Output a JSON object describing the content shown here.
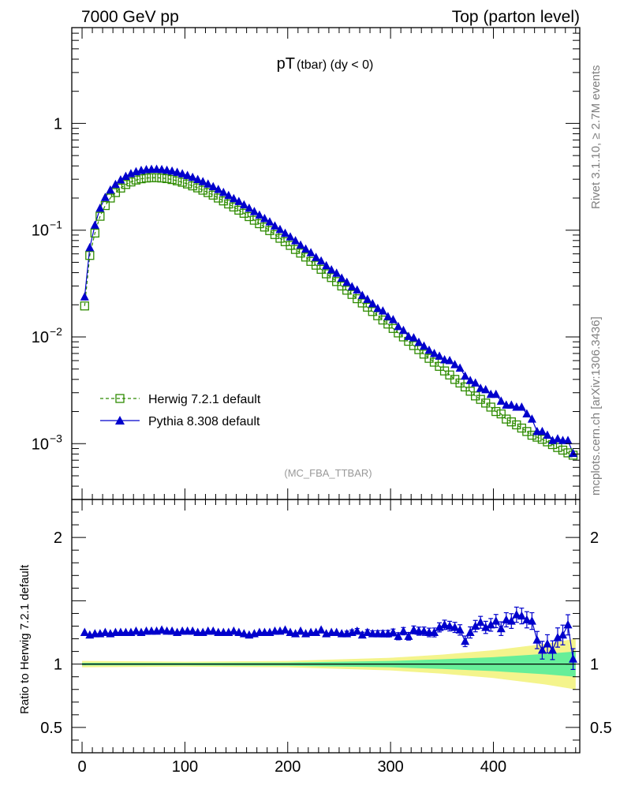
{
  "header": {
    "left": "7000 GeV pp",
    "right": "Top (parton level)"
  },
  "side_labels": {
    "rivet": "Rivet 3.1.10, ≥ 2.7M events",
    "mcplots": "mcplots.cern.ch [arXiv:1306.3436]"
  },
  "chart_data": [
    {
      "type": "line",
      "panel": "main",
      "title_main": "pT",
      "title_sub": "(tbar) (dy < 0)",
      "watermark": "(MC_FBA_TTBAR)",
      "yscale": "log",
      "xlim": [
        -10,
        484
      ],
      "ylim": [
        0.0003,
        7.9
      ],
      "xticks": [
        0,
        100,
        200,
        300,
        400
      ],
      "yticks": [
        {
          "value": 1,
          "label": "1"
        },
        {
          "value": 0.1,
          "label": "10",
          "exp": "−1"
        },
        {
          "value": 0.01,
          "label": "10",
          "exp": "−2"
        },
        {
          "value": 0.001,
          "label": "10",
          "exp": "−3"
        }
      ],
      "legend": [
        {
          "name": "Herwig 7.2.1 default",
          "color": "#2e8b00",
          "marker": "open-square",
          "dash": true
        },
        {
          "name": "Pythia 8.308 default",
          "color": "#0000cc",
          "marker": "filled-triangle",
          "dash": false
        }
      ],
      "legend_position": "lower-left",
      "x": [
        2.5,
        7.5,
        12.5,
        17.5,
        22.5,
        27.5,
        32.5,
        37.5,
        42.5,
        47.5,
        52.5,
        57.5,
        62.5,
        67.5,
        72.5,
        77.5,
        82.5,
        87.5,
        92.5,
        97.5,
        102.5,
        107.5,
        112.5,
        117.5,
        122.5,
        127.5,
        132.5,
        137.5,
        142.5,
        147.5,
        152.5,
        157.5,
        162.5,
        167.5,
        172.5,
        177.5,
        182.5,
        187.5,
        192.5,
        197.5,
        202.5,
        207.5,
        212.5,
        217.5,
        222.5,
        227.5,
        232.5,
        237.5,
        242.5,
        247.5,
        252.5,
        257.5,
        262.5,
        267.5,
        272.5,
        277.5,
        282.5,
        287.5,
        292.5,
        297.5,
        302.5,
        307.5,
        312.5,
        317.5,
        322.5,
        327.5,
        332.5,
        337.5,
        342.5,
        347.5,
        352.5,
        357.5,
        362.5,
        367.5,
        372.5,
        377.5,
        382.5,
        387.5,
        392.5,
        397.5,
        402.5,
        407.5,
        412.5,
        417.5,
        422.5,
        427.5,
        432.5,
        437.5,
        442.5,
        447.5,
        452.5,
        457.5,
        462.5,
        467.5,
        472.5,
        477.5
      ],
      "series": [
        {
          "name": "Herwig 7.2.1 default",
          "values": [
            0.0195,
            0.058,
            0.094,
            0.135,
            0.17,
            0.2,
            0.225,
            0.248,
            0.268,
            0.283,
            0.295,
            0.303,
            0.308,
            0.31,
            0.31,
            0.308,
            0.304,
            0.298,
            0.29,
            0.281,
            0.271,
            0.26,
            0.249,
            0.237,
            0.225,
            0.213,
            0.2,
            0.188,
            0.176,
            0.165,
            0.154,
            0.144,
            0.134,
            0.124,
            0.115,
            0.107,
            0.099,
            0.091,
            0.084,
            0.078,
            0.072,
            0.066,
            0.061,
            0.056,
            0.051,
            0.047,
            0.043,
            0.039,
            0.036,
            0.033,
            0.03,
            0.0274,
            0.025,
            0.0228,
            0.0208,
            0.019,
            0.0173,
            0.0158,
            0.0144,
            0.0132,
            0.012,
            0.0109,
            0.01,
            0.0091,
            0.0083,
            0.0076,
            0.0069,
            0.0063,
            0.0058,
            0.0053,
            0.0048,
            0.0044,
            0.004,
            0.0037,
            0.0034,
            0.0031,
            0.0028,
            0.0026,
            0.0024,
            0.0022,
            0.002,
            0.0019,
            0.0017,
            0.0016,
            0.0015,
            0.0014,
            0.0013,
            0.0012,
            0.00115,
            0.0011,
            0.00104,
            0.00098,
            0.00092,
            0.00087,
            0.00082,
            0.00078
          ]
        },
        {
          "name": "Pythia 8.308 default",
          "values": [
            0.0237,
            0.0685,
            0.1115,
            0.1605,
            0.2025,
            0.2375,
            0.268,
            0.2955,
            0.3195,
            0.338,
            0.353,
            0.3625,
            0.369,
            0.3715,
            0.372,
            0.3695,
            0.3645,
            0.3575,
            0.3485,
            0.3375,
            0.3255,
            0.3125,
            0.2985,
            0.2845,
            0.2705,
            0.2555,
            0.2405,
            0.2255,
            0.2115,
            0.1975,
            0.1855,
            0.1725,
            0.1605,
            0.1495,
            0.1385,
            0.1285,
            0.1195,
            0.1095,
            0.1015,
            0.0935,
            0.0865,
            0.0795,
            0.0725,
            0.0665,
            0.0615,
            0.0555,
            0.0515,
            0.0465,
            0.0425,
            0.0395,
            0.0355,
            0.0325,
            0.0295,
            0.0275,
            0.0245,
            0.0225,
            0.0205,
            0.0185,
            0.0175,
            0.0155,
            0.0145,
            0.0125,
            0.0115,
            0.0101,
            0.0098,
            0.0089,
            0.0082,
            0.0075,
            0.007,
            0.0066,
            0.0061,
            0.006,
            0.0055,
            0.0051,
            0.0043,
            0.0039,
            0.0037,
            0.0033,
            0.0032,
            0.0029,
            0.0029,
            0.0025,
            0.0023,
            0.0023,
            0.0022,
            0.0022,
            0.0019,
            0.0017,
            0.0013,
            0.0013,
            0.0012,
            0.00107,
            0.00111,
            0.00107,
            0.00107,
            0.00081
          ]
        }
      ]
    },
    {
      "type": "line",
      "panel": "ratio",
      "ylabel": "Ratio to Herwig 7.2.1 default",
      "xlim": [
        -10,
        484
      ],
      "ylim": [
        0.3,
        2.3
      ],
      "xticks": [
        0,
        100,
        200,
        300,
        400
      ],
      "yticks": [
        {
          "value": 0.5,
          "label": "0.5"
        },
        {
          "value": 1,
          "label": "1"
        },
        {
          "value": 2,
          "label": "2"
        }
      ],
      "reference": 1.0,
      "bands": {
        "x": [
          0,
          100,
          200,
          300,
          350,
          400,
          450,
          480
        ],
        "green_half_width": [
          0.01,
          0.01,
          0.013,
          0.025,
          0.038,
          0.055,
          0.08,
          0.1
        ],
        "yellow_half_width": [
          0.025,
          0.02,
          0.025,
          0.05,
          0.075,
          0.11,
          0.16,
          0.2
        ]
      },
      "series": [
        {
          "name": "Pythia 8.308 default ratio",
          "values": [
            1.25,
            1.23,
            1.24,
            1.24,
            1.25,
            1.24,
            1.25,
            1.25,
            1.25,
            1.25,
            1.26,
            1.25,
            1.26,
            1.26,
            1.26,
            1.27,
            1.26,
            1.26,
            1.25,
            1.26,
            1.26,
            1.26,
            1.25,
            1.25,
            1.26,
            1.26,
            1.25,
            1.25,
            1.25,
            1.26,
            1.25,
            1.24,
            1.23,
            1.24,
            1.25,
            1.25,
            1.25,
            1.26,
            1.26,
            1.27,
            1.25,
            1.24,
            1.26,
            1.24,
            1.25,
            1.25,
            1.27,
            1.24,
            1.25,
            1.25,
            1.24,
            1.24,
            1.25,
            1.26,
            1.23,
            1.25,
            1.24,
            1.24,
            1.24,
            1.24,
            1.25,
            1.22,
            1.26,
            1.22,
            1.27,
            1.26,
            1.26,
            1.25,
            1.25,
            1.29,
            1.31,
            1.3,
            1.29,
            1.27,
            1.18,
            1.25,
            1.3,
            1.33,
            1.29,
            1.31,
            1.34,
            1.28,
            1.35,
            1.34,
            1.39,
            1.38,
            1.35,
            1.34,
            1.19,
            1.11,
            1.16,
            1.11,
            1.21,
            1.23,
            1.31,
            1.04
          ],
          "errors": [
            0.01,
            0.01,
            0.01,
            0.01,
            0.01,
            0.01,
            0.01,
            0.01,
            0.01,
            0.01,
            0.01,
            0.01,
            0.01,
            0.01,
            0.01,
            0.01,
            0.01,
            0.01,
            0.01,
            0.01,
            0.01,
            0.01,
            0.01,
            0.01,
            0.01,
            0.01,
            0.01,
            0.01,
            0.01,
            0.01,
            0.01,
            0.012,
            0.012,
            0.012,
            0.012,
            0.012,
            0.013,
            0.013,
            0.013,
            0.014,
            0.014,
            0.014,
            0.015,
            0.015,
            0.016,
            0.016,
            0.017,
            0.017,
            0.018,
            0.018,
            0.019,
            0.02,
            0.02,
            0.021,
            0.022,
            0.022,
            0.023,
            0.024,
            0.025,
            0.026,
            0.027,
            0.028,
            0.029,
            0.03,
            0.031,
            0.032,
            0.033,
            0.034,
            0.035,
            0.036,
            0.037,
            0.038,
            0.04,
            0.041,
            0.042,
            0.044,
            0.045,
            0.047,
            0.048,
            0.05,
            0.052,
            0.054,
            0.056,
            0.058,
            0.06,
            0.062,
            0.064,
            0.066,
            0.068,
            0.07,
            0.072,
            0.074,
            0.076,
            0.078,
            0.08,
            0.082
          ]
        }
      ]
    }
  ],
  "colors": {
    "herwig": "#2e8b00",
    "pythia": "#0000cc",
    "band_green": "#66ee99",
    "band_yellow": "#f4f48c",
    "watermark": "#999999",
    "side_text": "#808080"
  }
}
